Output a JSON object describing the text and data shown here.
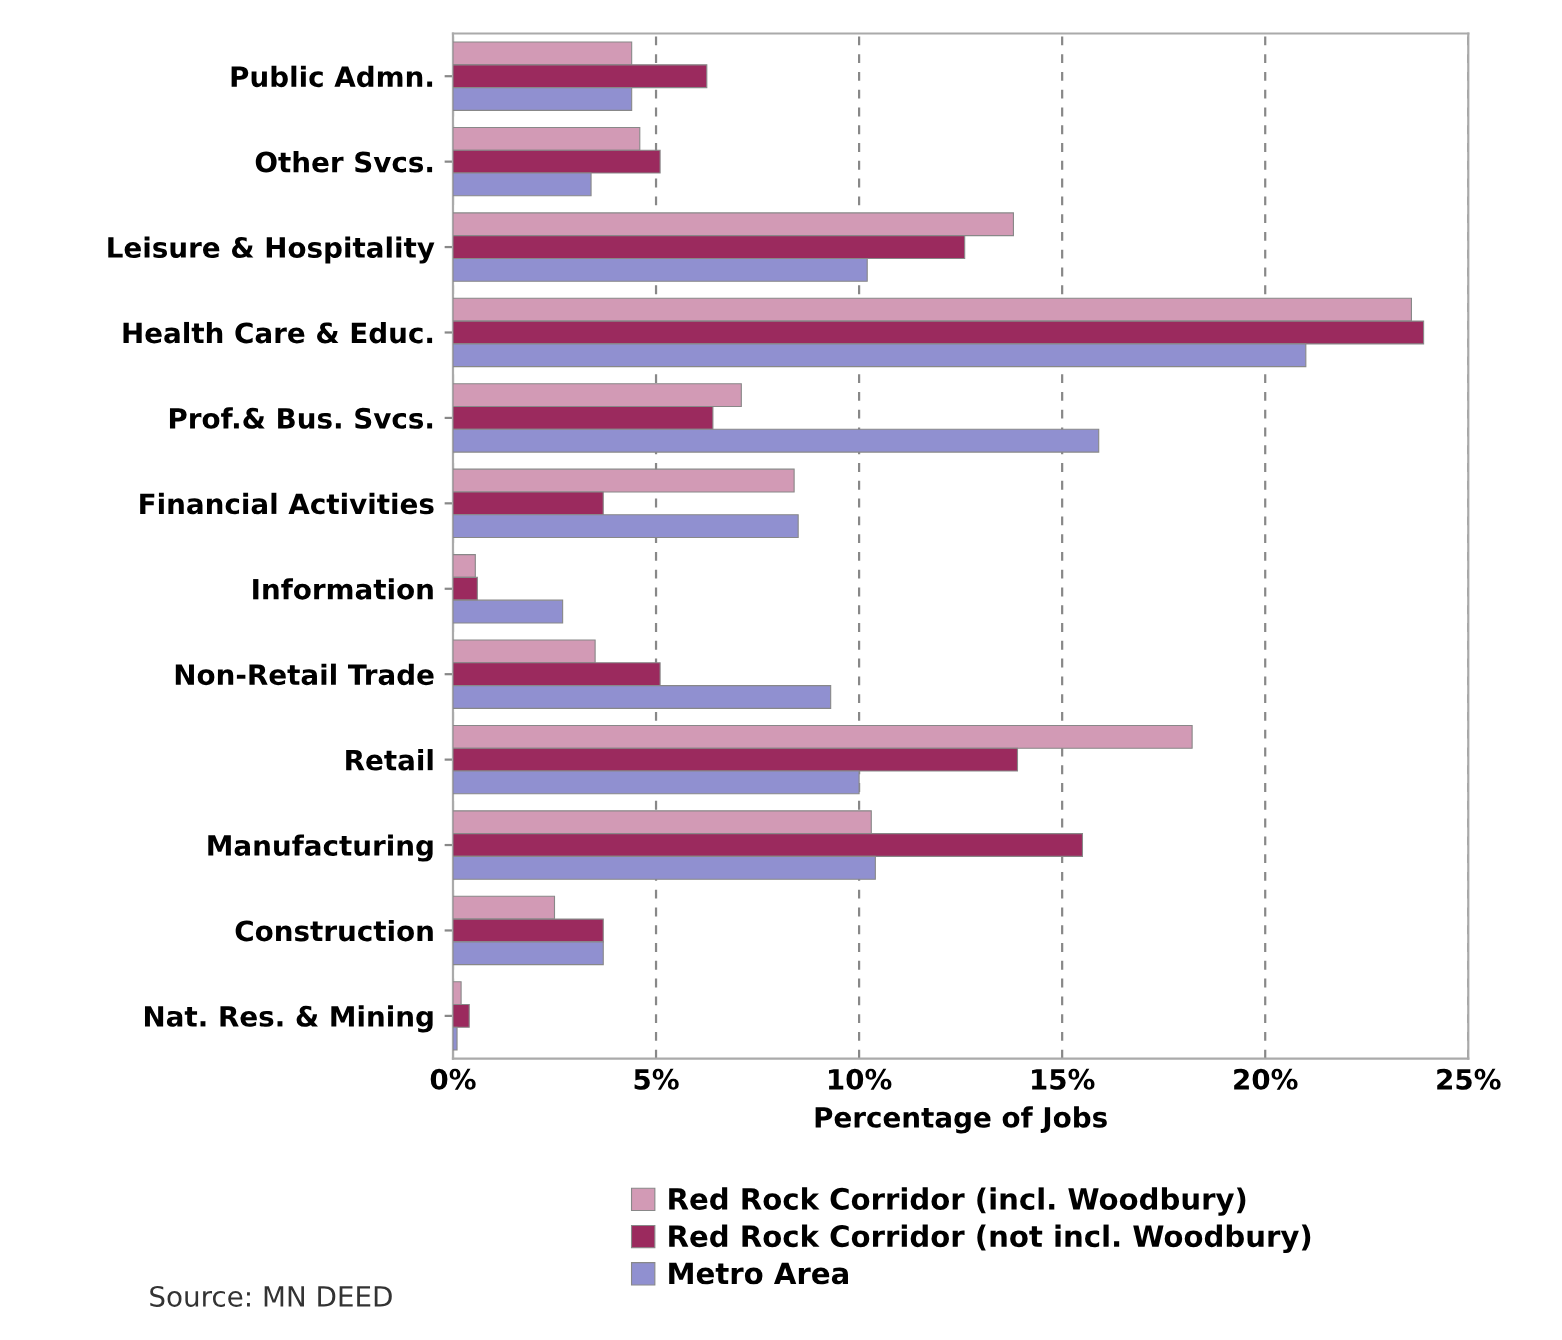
{
  "chart_data": {
    "type": "bar",
    "orientation": "horizontal",
    "xlabel": "Percentage of Jobs",
    "categories": [
      "Public Admn.",
      "Other Svcs.",
      "Leisure & Hospitality",
      "Health Care & Educ.",
      "Prof.& Bus. Svcs.",
      "Financial Activities",
      "Information",
      "Non-Retail Trade",
      "Retail",
      "Manufacturing",
      "Construction",
      "Nat. Res. & Mining"
    ],
    "series": [
      {
        "name": "Red Rock Corridor (incl. Woodbury)",
        "color": "#d29ab5",
        "values": [
          4.4,
          4.6,
          13.8,
          23.6,
          7.1,
          8.4,
          0.55,
          3.5,
          18.2,
          10.3,
          2.5,
          0.2
        ]
      },
      {
        "name": "Red Rock Corridor (not incl. Woodbury)",
        "color": "#9b2a5e",
        "values": [
          6.25,
          5.1,
          12.6,
          23.9,
          6.4,
          3.7,
          0.6,
          5.1,
          13.9,
          15.5,
          3.7,
          0.4
        ]
      },
      {
        "name": "Metro Area",
        "color": "#9090d0",
        "values": [
          4.4,
          3.4,
          10.2,
          21.0,
          15.9,
          8.5,
          2.7,
          9.3,
          10.0,
          10.4,
          3.7,
          0.1
        ]
      }
    ],
    "xlim": [
      0,
      25
    ],
    "xticks": [
      {
        "value": 0,
        "label": "0%"
      },
      {
        "value": 5,
        "label": "5%"
      },
      {
        "value": 10,
        "label": "10%"
      },
      {
        "value": 15,
        "label": "15%"
      },
      {
        "value": 20,
        "label": "20%"
      },
      {
        "value": 25,
        "label": "25%"
      }
    ],
    "grid": "x",
    "legend": "bottom",
    "annotations": [
      "Source: MN DEED"
    ]
  }
}
